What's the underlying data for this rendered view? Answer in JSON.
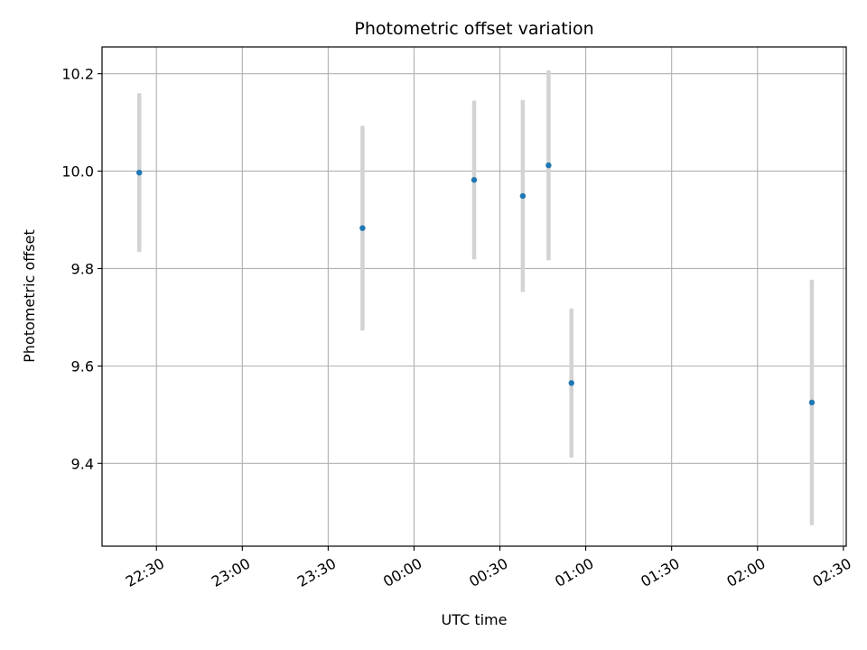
{
  "chart_data": {
    "type": "scatter",
    "title": "Photometric offset variation",
    "xlabel": "UTC time",
    "ylabel": "Photometric offset",
    "x_ticks": [
      "22:30",
      "23:00",
      "23:30",
      "00:00",
      "00:30",
      "01:00",
      "01:30",
      "02:00",
      "02:30"
    ],
    "y_ticks": [
      "9.4",
      "9.6",
      "9.8",
      "10.0",
      "10.2"
    ],
    "xlim": [
      "22:11",
      "02:31"
    ],
    "ylim": [
      9.23,
      10.255
    ],
    "grid": true,
    "legend": "none",
    "colors": {
      "point": "#1f77b4",
      "errorbar": "#d3d3d3",
      "grid": "#b0b0b0"
    },
    "points": [
      {
        "time": "22:24",
        "value": 9.997,
        "error": 0.163
      },
      {
        "time": "23:42",
        "value": 9.883,
        "error": 0.21
      },
      {
        "time": "00:21",
        "value": 9.982,
        "error": 0.163
      },
      {
        "time": "00:38",
        "value": 9.949,
        "error": 0.197
      },
      {
        "time": "00:47",
        "value": 10.012,
        "error": 0.195
      },
      {
        "time": "00:55",
        "value": 9.565,
        "error": 0.153
      },
      {
        "time": "02:19",
        "value": 9.525,
        "error": 0.252
      }
    ]
  }
}
